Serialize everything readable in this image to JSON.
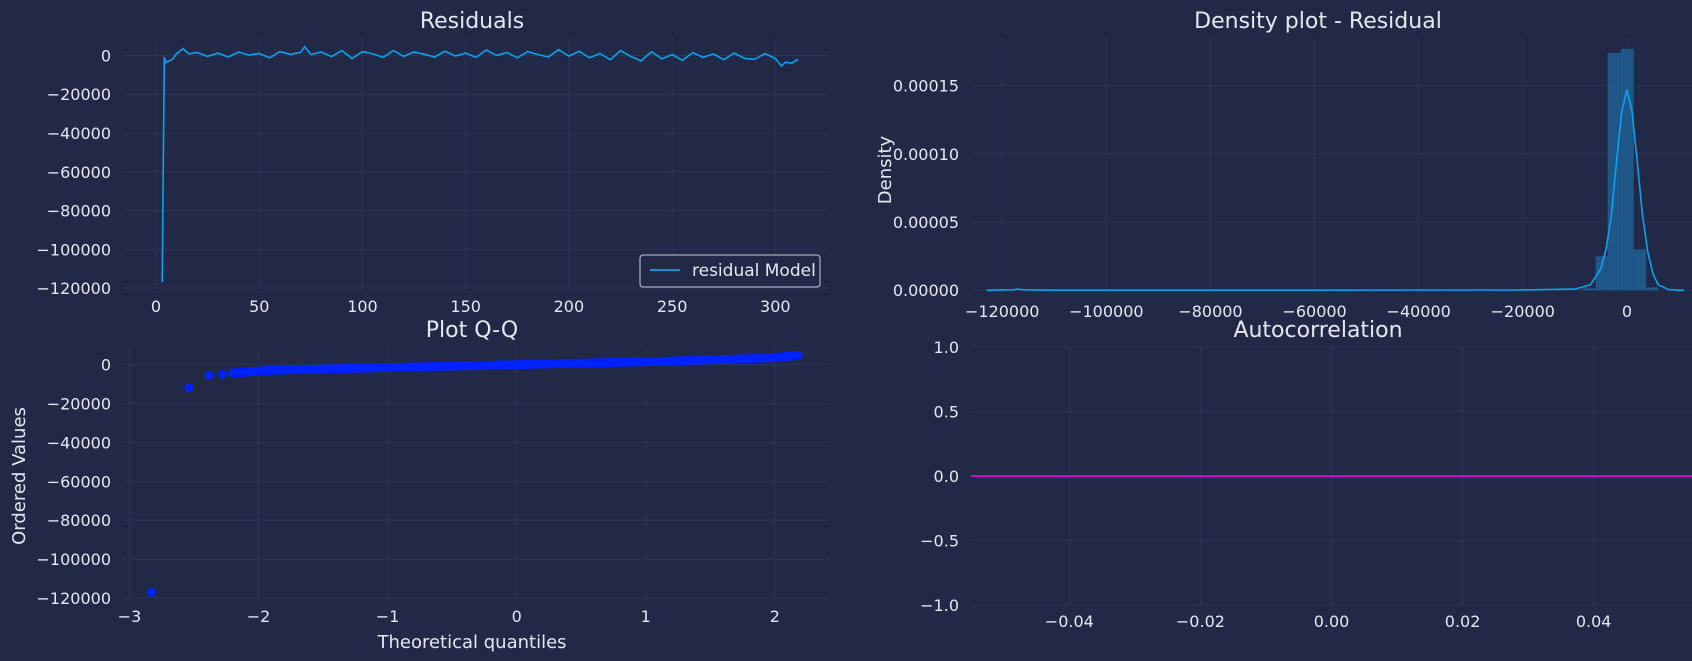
{
  "theme": {
    "background": "#212946",
    "grid": "#2A3459",
    "text": "#E6E8F0",
    "accent_line": "#08A3F0",
    "qq_points": "#0022FF",
    "acf_line": "#E500E5",
    "hist_fill": "#1F5F95"
  },
  "chart_data": [
    {
      "id": "residuals",
      "type": "line",
      "title": "Residuals",
      "xlabel": "",
      "ylabel": "",
      "xlim": [
        -16,
        326
      ],
      "ylim": [
        -121000,
        9000
      ],
      "xticks": [
        0,
        50,
        100,
        150,
        200,
        250,
        300
      ],
      "yticks": [
        0,
        -20000,
        -40000,
        -60000,
        -80000,
        -100000,
        -120000
      ],
      "legend": {
        "position": "lower-right",
        "entries": [
          "residual Model"
        ]
      },
      "series": [
        {
          "name": "residual Model",
          "x": [
            3,
            4,
            5,
            7,
            8,
            10,
            13,
            16,
            20,
            25,
            30,
            35,
            40,
            45,
            50,
            55,
            60,
            65,
            70,
            72,
            75,
            80,
            85,
            90,
            95,
            100,
            105,
            110,
            115,
            120,
            125,
            130,
            135,
            140,
            145,
            150,
            155,
            160,
            165,
            170,
            175,
            180,
            185,
            190,
            195,
            200,
            205,
            210,
            215,
            220,
            225,
            230,
            235,
            240,
            245,
            250,
            255,
            260,
            265,
            270,
            275,
            280,
            285,
            290,
            295,
            300,
            303,
            305,
            308,
            311
          ],
          "y": [
            -117000,
            -1500,
            -3500,
            -2500,
            -2000,
            1000,
            3500,
            800,
            1500,
            -500,
            1200,
            -800,
            1800,
            200,
            1000,
            -1200,
            2000,
            600,
            1500,
            4500,
            500,
            1800,
            -600,
            2500,
            -1500,
            2000,
            800,
            -1000,
            2500,
            -500,
            1800,
            600,
            -800,
            2200,
            -300,
            1200,
            -1000,
            2800,
            0,
            1500,
            -1200,
            2000,
            500,
            -800,
            3000,
            -400,
            2200,
            -1200,
            1000,
            -2200,
            2500,
            -500,
            -2800,
            2000,
            -1800,
            500,
            -2500,
            1500,
            -1000,
            800,
            -2200,
            1200,
            -1500,
            -2000,
            1000,
            -1500,
            -5500,
            -3500,
            -4000,
            -2000
          ]
        }
      ]
    },
    {
      "id": "density",
      "type": "area",
      "title": "Density plot - Residual",
      "xlabel": "",
      "ylabel": "Density",
      "xlim": [
        -126000,
        12500
      ],
      "ylim": [
        -3.5e-06,
        0.000185
      ],
      "xticks": [
        -120000,
        -100000,
        -80000,
        -60000,
        -40000,
        -20000,
        0
      ],
      "yticks": [
        "0.00000",
        "0.00005",
        "0.00010",
        "0.00015"
      ],
      "hist_bins": [
        {
          "x0": -8500,
          "x1": -6000,
          "y": 1.5e-06
        },
        {
          "x0": -6000,
          "x1": -3700,
          "y": 2.5e-05
        },
        {
          "x0": -3700,
          "x1": -1200,
          "y": 0.000174
        },
        {
          "x0": -1200,
          "x1": 1300,
          "y": 0.000177
        },
        {
          "x0": 1300,
          "x1": 3700,
          "y": 3e-05
        },
        {
          "x0": 3700,
          "x1": 6000,
          "y": 2e-06
        }
      ],
      "series": [
        {
          "x": [
            -123000,
            -118000,
            -117000,
            -116000,
            -110000,
            -60000,
            -20000,
            -10000,
            -7000,
            -5000,
            -4000,
            -3000,
            -2000,
            -1000,
            0,
            1000,
            2000,
            3000,
            4000,
            5000,
            6000,
            8000,
            10000,
            11000
          ],
          "y": [
            0,
            3e-07,
            8e-07,
            3e-07,
            0,
            0,
            2e-07,
            8e-07,
            4e-06,
            1.6e-05,
            3e-05,
            5.5e-05,
            9.4e-05,
            0.000131,
            0.000147,
            0.000131,
            9.4e-05,
            5.5e-05,
            2.8e-05,
            1.2e-05,
            4e-06,
            5e-07,
            0,
            0
          ]
        }
      ]
    },
    {
      "id": "qq",
      "type": "scatter",
      "title": "Plot Q-Q",
      "xlabel": "Theoretical quantiles",
      "ylabel": "Ordered Values",
      "xlim": [
        -3.05,
        2.42
      ],
      "ylim": [
        -121000,
        9000
      ],
      "xticks": [
        -3,
        -2,
        -1,
        0,
        1,
        2
      ],
      "yticks": [
        0,
        -20000,
        -40000,
        -60000,
        -80000,
        -100000,
        -120000
      ],
      "series": [
        {
          "x": [
            -2.83,
            -2.54,
            -2.38,
            -2.28,
            -2.2,
            -2.14,
            -2.09,
            -2.04,
            -2.0,
            -1.95,
            -1.9,
            -1.8,
            -1.7,
            -1.6,
            -1.5,
            -1.4,
            -1.3,
            -1.2,
            -1.1,
            -1.0,
            -0.9,
            -0.8,
            -0.7,
            -0.6,
            -0.5,
            -0.4,
            -0.3,
            -0.2,
            -0.1,
            0.0,
            0.1,
            0.2,
            0.3,
            0.4,
            0.5,
            0.6,
            0.7,
            0.8,
            0.9,
            1.0,
            1.1,
            1.2,
            1.3,
            1.4,
            1.5,
            1.6,
            1.7,
            1.8,
            1.9,
            1.96,
            2.01,
            2.05,
            2.1,
            2.18
          ],
          "y": [
            -117000,
            -12000,
            -5500,
            -5000,
            -4300,
            -4000,
            -3800,
            -3600,
            -3400,
            -3200,
            -3000,
            -2800,
            -2600,
            -2450,
            -2300,
            -2150,
            -2000,
            -1850,
            -1700,
            -1550,
            -1400,
            -1250,
            -1100,
            -950,
            -800,
            -650,
            -500,
            -350,
            -200,
            -50,
            100,
            250,
            400,
            550,
            700,
            850,
            1000,
            1150,
            1300,
            1450,
            1600,
            1800,
            2000,
            2200,
            2400,
            2600,
            2800,
            3000,
            3300,
            3500,
            3700,
            3900,
            4200,
            4800
          ]
        }
      ]
    },
    {
      "id": "acf",
      "type": "line",
      "title": "Autocorrelation",
      "xlabel": "",
      "ylabel": "",
      "xlim": [
        -0.055,
        0.055
      ],
      "ylim": [
        -1.0,
        1.0
      ],
      "xticks": [
        "-0.04",
        "-0.02",
        "0.00",
        "0.02",
        "0.04"
      ],
      "yticks": [
        "1.0",
        "0.5",
        "0.0",
        "-0.5",
        "-1.0"
      ],
      "series": [
        {
          "x": [
            -0.055,
            0.055
          ],
          "y": [
            0.0,
            0.0
          ]
        }
      ]
    }
  ]
}
